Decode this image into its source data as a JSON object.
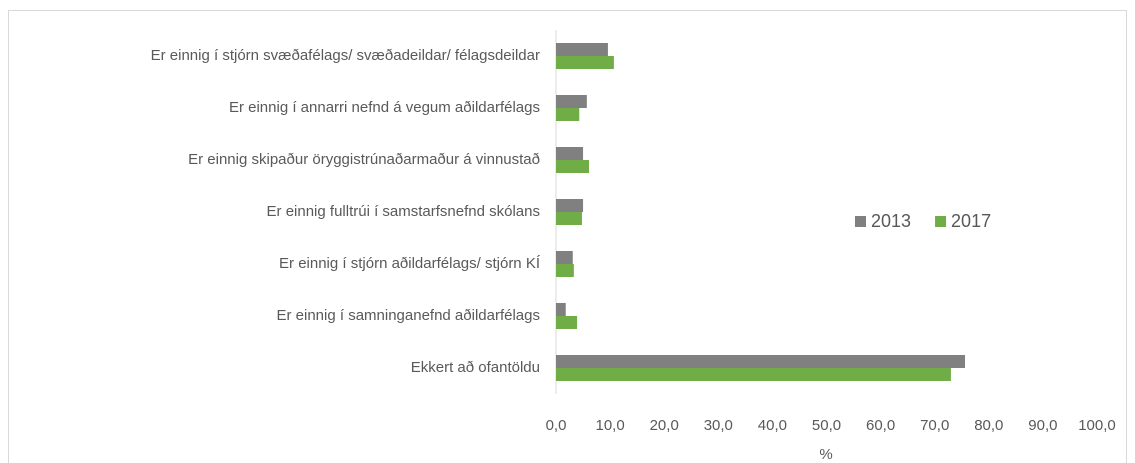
{
  "chart_data": {
    "type": "hbar",
    "categories": [
      "Er einnig í stjórn svæðafélags/ svæðadeildar/ félagsdeildar",
      "Er einnig í annarri nefnd á vegum aðildarfélags",
      "Er einnig skipaður öryggistrúnaðarmaður á vinnustað",
      "Er einnig fulltrúi í samstarfsnefnd skólans",
      "Er einnig í stjórn aðildarfélags/ stjórn KÍ",
      "Er einnig í samninganefnd aðildarfélags",
      "Ekkert að ofantöldu"
    ],
    "series": [
      {
        "name": "2013",
        "color": "#808080",
        "values": [
          9.6,
          5.7,
          5.0,
          5.0,
          3.1,
          1.8,
          75.6
        ]
      },
      {
        "name": "2017",
        "color": "#70ad47",
        "values": [
          10.7,
          4.3,
          6.1,
          4.8,
          3.3,
          3.9,
          73.0
        ]
      }
    ],
    "xlabel": "%",
    "xlim": [
      0,
      100
    ],
    "xticks": [
      {
        "value": 0,
        "label": "0,0"
      },
      {
        "value": 10,
        "label": "10,0"
      },
      {
        "value": 20,
        "label": "20,0"
      },
      {
        "value": 30,
        "label": "30,0"
      },
      {
        "value": 40,
        "label": "40,0"
      },
      {
        "value": 50,
        "label": "50,0"
      },
      {
        "value": 60,
        "label": "60,0"
      },
      {
        "value": 70,
        "label": "70,0"
      },
      {
        "value": 80,
        "label": "80,0"
      },
      {
        "value": 90,
        "label": "90,0"
      },
      {
        "value": 100,
        "label": "100,0"
      }
    ],
    "grid": false,
    "legend": "right"
  }
}
